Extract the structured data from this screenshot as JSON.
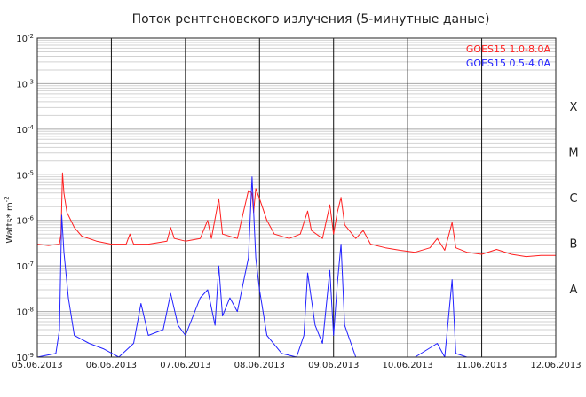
{
  "chart_data": {
    "type": "line",
    "title": "Поток рентгеновского излучения (5-минутные даные)",
    "ylabel_base": "Watts",
    "ylabel_mid": "* m",
    "ylabel_sup": "-2",
    "y_scale": "log",
    "ylim": [
      1e-09,
      0.01
    ],
    "y_ticks": [
      {
        "base": "10",
        "exp": "-2",
        "value": 0.01
      },
      {
        "base": "10",
        "exp": "-3",
        "value": 0.001
      },
      {
        "base": "10",
        "exp": "-4",
        "value": 0.0001
      },
      {
        "base": "10",
        "exp": "-5",
        "value": 1e-05
      },
      {
        "base": "10",
        "exp": "-6",
        "value": 1e-06
      },
      {
        "base": "10",
        "exp": "-7",
        "value": 1e-07
      },
      {
        "base": "10",
        "exp": "-8",
        "value": 1e-08
      },
      {
        "base": "10",
        "exp": "-9",
        "value": 1e-09
      }
    ],
    "xlim": [
      "05.06.2013",
      "12.06.2013"
    ],
    "x_ticks": [
      "05.06.2013",
      "06.06.2013",
      "07.06.2013",
      "08.06.2013",
      "09.06.2013",
      "10.06.2013",
      "11.06.2013",
      "12.06.2013"
    ],
    "grid": true,
    "legend_position": "top-right",
    "flare_classes": [
      {
        "label": "X",
        "value": 0.0001
      },
      {
        "label": "M",
        "value": 1e-05
      },
      {
        "label": "C",
        "value": 1e-06
      },
      {
        "label": "B",
        "value": 1e-07
      },
      {
        "label": "A",
        "value": 1e-08
      }
    ],
    "series": [
      {
        "name": "GOES15 1.0-8.0A",
        "color": "#ff2020",
        "points": [
          [
            0.0,
            3e-07
          ],
          [
            0.15,
            2.8e-07
          ],
          [
            0.3,
            3e-07
          ],
          [
            0.32,
            5e-07
          ],
          [
            0.34,
            1.1e-05
          ],
          [
            0.36,
            4e-06
          ],
          [
            0.4,
            1.5e-06
          ],
          [
            0.5,
            7e-07
          ],
          [
            0.6,
            4.5e-07
          ],
          [
            0.8,
            3.5e-07
          ],
          [
            1.0,
            3e-07
          ],
          [
            1.2,
            3e-07
          ],
          [
            1.25,
            5e-07
          ],
          [
            1.3,
            3e-07
          ],
          [
            1.5,
            3e-07
          ],
          [
            1.75,
            3.5e-07
          ],
          [
            1.8,
            7e-07
          ],
          [
            1.85,
            4e-07
          ],
          [
            2.0,
            3.5e-07
          ],
          [
            2.2,
            4e-07
          ],
          [
            2.3,
            1e-06
          ],
          [
            2.35,
            4e-07
          ],
          [
            2.45,
            3e-06
          ],
          [
            2.5,
            5e-07
          ],
          [
            2.7,
            4e-07
          ],
          [
            2.85,
            4.5e-06
          ],
          [
            2.9,
            4e-06
          ],
          [
            2.92,
            1.5e-06
          ],
          [
            2.95,
            5e-06
          ],
          [
            3.0,
            3e-06
          ],
          [
            3.1,
            1e-06
          ],
          [
            3.2,
            5e-07
          ],
          [
            3.4,
            4e-07
          ],
          [
            3.55,
            5e-07
          ],
          [
            3.65,
            1.6e-06
          ],
          [
            3.7,
            6e-07
          ],
          [
            3.85,
            4e-07
          ],
          [
            3.95,
            2.2e-06
          ],
          [
            4.0,
            5e-07
          ],
          [
            4.05,
            1.5e-06
          ],
          [
            4.1,
            3.2e-06
          ],
          [
            4.15,
            8e-07
          ],
          [
            4.3,
            4e-07
          ],
          [
            4.4,
            6e-07
          ],
          [
            4.5,
            3e-07
          ],
          [
            4.7,
            2.5e-07
          ],
          [
            4.9,
            2.2e-07
          ],
          [
            5.1,
            2e-07
          ],
          [
            5.3,
            2.5e-07
          ],
          [
            5.4,
            4e-07
          ],
          [
            5.5,
            2.2e-07
          ],
          [
            5.6,
            9e-07
          ],
          [
            5.65,
            2.5e-07
          ],
          [
            5.8,
            2e-07
          ],
          [
            6.0,
            1.8e-07
          ],
          [
            6.2,
            2.3e-07
          ],
          [
            6.4,
            1.8e-07
          ],
          [
            6.6,
            1.6e-07
          ],
          [
            6.8,
            1.7e-07
          ],
          [
            7.0,
            1.7e-07
          ]
        ]
      },
      {
        "name": "GOES15 0.5-4.0A",
        "color": "#2222ff",
        "points": [
          [
            0.0,
            1e-09
          ],
          [
            0.25,
            1.2e-09
          ],
          [
            0.3,
            4e-09
          ],
          [
            0.33,
            1.3e-06
          ],
          [
            0.36,
            2e-07
          ],
          [
            0.42,
            2e-08
          ],
          [
            0.5,
            3e-09
          ],
          [
            0.7,
            2e-09
          ],
          [
            0.9,
            1.5e-09
          ],
          [
            1.1,
            1e-09
          ],
          [
            1.3,
            2e-09
          ],
          [
            1.4,
            1.5e-08
          ],
          [
            1.5,
            3e-09
          ],
          [
            1.7,
            4e-09
          ],
          [
            1.8,
            2.5e-08
          ],
          [
            1.9,
            5e-09
          ],
          [
            2.0,
            3e-09
          ],
          [
            2.2,
            2e-08
          ],
          [
            2.3,
            3e-08
          ],
          [
            2.4,
            5e-09
          ],
          [
            2.45,
            1e-07
          ],
          [
            2.5,
            8e-09
          ],
          [
            2.6,
            2e-08
          ],
          [
            2.7,
            1e-08
          ],
          [
            2.85,
            1.5e-07
          ],
          [
            2.9,
            9e-06
          ],
          [
            2.95,
            1.5e-07
          ],
          [
            3.0,
            3e-08
          ],
          [
            3.1,
            3e-09
          ],
          [
            3.3,
            1.2e-09
          ],
          [
            3.5,
            1e-09
          ],
          [
            3.6,
            3e-09
          ],
          [
            3.65,
            7e-08
          ],
          [
            3.75,
            5e-09
          ],
          [
            3.85,
            2e-09
          ],
          [
            3.95,
            8e-08
          ],
          [
            4.0,
            3e-09
          ],
          [
            4.05,
            4e-08
          ],
          [
            4.1,
            3e-07
          ],
          [
            4.15,
            5e-09
          ],
          [
            4.3,
            1e-09
          ],
          [
            4.5,
            1e-09
          ],
          [
            4.7,
            1e-09
          ],
          [
            5.1,
            1e-09
          ],
          [
            5.4,
            2e-09
          ],
          [
            5.5,
            1e-09
          ],
          [
            5.6,
            5e-08
          ],
          [
            5.65,
            1.2e-09
          ],
          [
            5.8,
            1e-09
          ],
          [
            6.0,
            1e-09
          ],
          [
            6.5,
            1e-09
          ],
          [
            7.0,
            1e-09
          ]
        ]
      }
    ]
  }
}
